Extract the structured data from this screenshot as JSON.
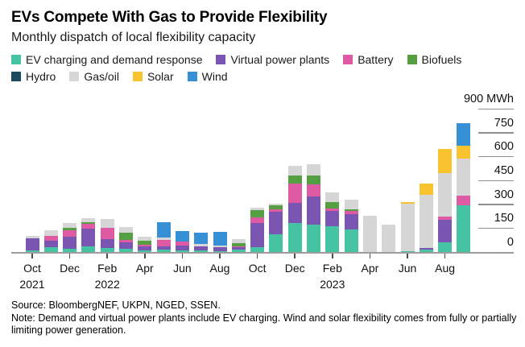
{
  "header": {
    "title": "EVs Compete With Gas to Provide Flexibility",
    "subtitle": "Monthly dispatch of local flexibility capacity"
  },
  "legend": {
    "rows": [
      [
        {
          "label": "EV charging and demand response",
          "color": "#46c3a3"
        },
        {
          "label": "Virtual power plants",
          "color": "#7a55b1"
        },
        {
          "label": "Battery",
          "color": "#de5ba4"
        },
        {
          "label": "Biofuels",
          "color": "#539f41"
        }
      ],
      [
        {
          "label": "Hydro",
          "color": "#1d4a5d"
        },
        {
          "label": "Gas/oil",
          "color": "#d6d6d6"
        },
        {
          "label": "Solar",
          "color": "#f8c32e"
        },
        {
          "label": "Wind",
          "color": "#3590d5"
        }
      ]
    ]
  },
  "chart_data": {
    "type": "bar",
    "stacked": true,
    "unit": "MWh",
    "title": "EVs Compete With Gas to Provide Flexibility",
    "subtitle": "Monthly dispatch of local flexibility capacity",
    "ylim": [
      0,
      900
    ],
    "yticks": [
      0,
      150,
      300,
      450,
      600,
      750,
      900
    ],
    "ytick_top_label": "900 MWh",
    "legend_position": "top",
    "grid": "right-axis-ticks-only",
    "categories": [
      "Oct 2021",
      "Nov 2021",
      "Dec 2021",
      "Jan 2022",
      "Feb 2022",
      "Mar 2022",
      "Apr 2022",
      "May 2022",
      "Jun 2022",
      "Jul 2022",
      "Aug 2022",
      "Sep 2022",
      "Oct 2022",
      "Nov 2022",
      "Dec 2022",
      "Jan 2023",
      "Feb 2023",
      "Mar 2023",
      "Apr 2023",
      "May 2023",
      "Jun 2023",
      "Jul 2023",
      "Aug 2023",
      "Sep 2023"
    ],
    "x_tick_labels": [
      {
        "month": "Oct",
        "year": "2021"
      },
      {
        "month": "Dec",
        "year": ""
      },
      {
        "month": "Feb",
        "year": "2022"
      },
      {
        "month": "Apr",
        "year": ""
      },
      {
        "month": "Jun",
        "year": ""
      },
      {
        "month": "Aug",
        "year": ""
      },
      {
        "month": "Oct",
        "year": ""
      },
      {
        "month": "Dec",
        "year": ""
      },
      {
        "month": "Feb",
        "year": "2023"
      },
      {
        "month": "Apr",
        "year": ""
      },
      {
        "month": "Jun",
        "year": ""
      },
      {
        "month": "Aug",
        "year": ""
      }
    ],
    "series": [
      {
        "name": "EV charging and demand response",
        "color": "#46c3a3",
        "values": [
          10,
          30,
          20,
          35,
          25,
          20,
          10,
          15,
          10,
          10,
          5,
          15,
          30,
          110,
          180,
          170,
          160,
          140,
          0,
          0,
          5,
          15,
          60,
          295
        ]
      },
      {
        "name": "Virtual power plants",
        "color": "#7a55b1",
        "values": [
          75,
          40,
          75,
          110,
          55,
          40,
          25,
          20,
          30,
          25,
          25,
          15,
          150,
          145,
          130,
          180,
          100,
          100,
          0,
          0,
          0,
          10,
          140,
          0
        ]
      },
      {
        "name": "Battery",
        "color": "#de5ba4",
        "values": [
          0,
          30,
          40,
          30,
          70,
          15,
          10,
          40,
          25,
          0,
          0,
          5,
          40,
          15,
          120,
          75,
          15,
          20,
          0,
          0,
          0,
          0,
          20,
          60
        ]
      },
      {
        "name": "Biofuels",
        "color": "#539f41",
        "values": [
          0,
          0,
          15,
          10,
          0,
          45,
          25,
          0,
          0,
          0,
          0,
          20,
          45,
          25,
          50,
          55,
          40,
          10,
          0,
          0,
          0,
          0,
          0,
          0
        ]
      },
      {
        "name": "Hydro",
        "color": "#1d4a5d",
        "values": [
          0,
          0,
          0,
          0,
          0,
          0,
          0,
          0,
          0,
          0,
          0,
          0,
          0,
          0,
          0,
          0,
          0,
          0,
          0,
          0,
          0,
          0,
          0,
          0
        ]
      },
      {
        "name": "Gas/oil",
        "color": "#d6d6d6",
        "values": [
          15,
          35,
          30,
          25,
          55,
          35,
          25,
          15,
          0,
          15,
          10,
          25,
          15,
          10,
          60,
          70,
          60,
          60,
          230,
          170,
          300,
          335,
          275,
          230
        ]
      },
      {
        "name": "Solar",
        "color": "#f8c32e",
        "values": [
          0,
          0,
          0,
          0,
          0,
          0,
          0,
          0,
          0,
          0,
          0,
          0,
          0,
          0,
          0,
          0,
          0,
          0,
          0,
          0,
          10,
          70,
          150,
          80
        ]
      },
      {
        "name": "Wind",
        "color": "#3590d5",
        "values": [
          0,
          0,
          0,
          0,
          0,
          0,
          0,
          95,
          65,
          70,
          85,
          0,
          0,
          0,
          0,
          0,
          0,
          0,
          0,
          0,
          0,
          0,
          0,
          145
        ]
      }
    ]
  },
  "footer": {
    "source": "Source: BloombergNEF, UKPN, NGED, SSEN.",
    "note": "Note: Demand and virtual power plants include EV charging. Wind and solar flexibility comes from fully or partially limiting power generation."
  }
}
